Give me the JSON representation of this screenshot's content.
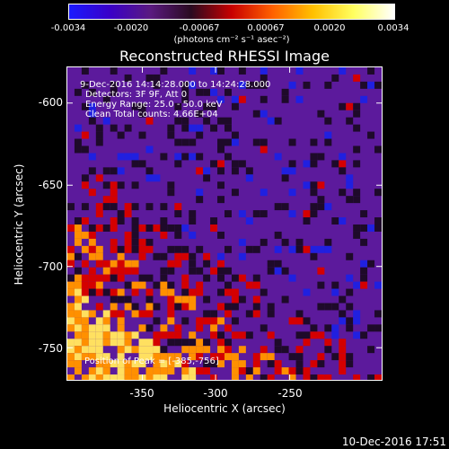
{
  "colorbar": {
    "ticks": [
      "-0.0034",
      "-0.0020",
      "-0.00067",
      "0.00067",
      "0.0020",
      "0.0034"
    ],
    "units": "(photons cm⁻² s⁻¹ asec⁻²)",
    "colors": [
      "#1a1aff",
      "#3a00c8",
      "#5a1a80",
      "#2a0a20",
      "#c80000",
      "#ff6000",
      "#ffc000",
      "#ffff60",
      "#ffffff"
    ]
  },
  "plot": {
    "title": "Reconstructed RHESSI Image",
    "info_lines": [
      "9-Dec-2016 14:14:28.000 to 14:24:28.000",
      "Detectors: 3F 9F, Att 0",
      "Energy Range: 25.0 - 50.0 keV",
      "Clean    Total counts: 4.66E+04"
    ],
    "peak_label": "Position of Peak = [-385,-756]",
    "xlabel": "Heliocentric X (arcsec)",
    "ylabel": "Heliocentric Y (arcsec)",
    "xticks": [
      "-350",
      "-300",
      "-250"
    ],
    "yticks": [
      "-600",
      "-650",
      "-700",
      "-750"
    ],
    "colors": {
      "background_map": "#5c1a9c",
      "dark_blob": "#1e0a2a",
      "red_blob": "#d40000",
      "blue_blob": "#2020e0",
      "hot": "#ff9000",
      "hottest": "#ffe060"
    }
  },
  "footer": {
    "date": "10-Dec-2016 17:51"
  }
}
